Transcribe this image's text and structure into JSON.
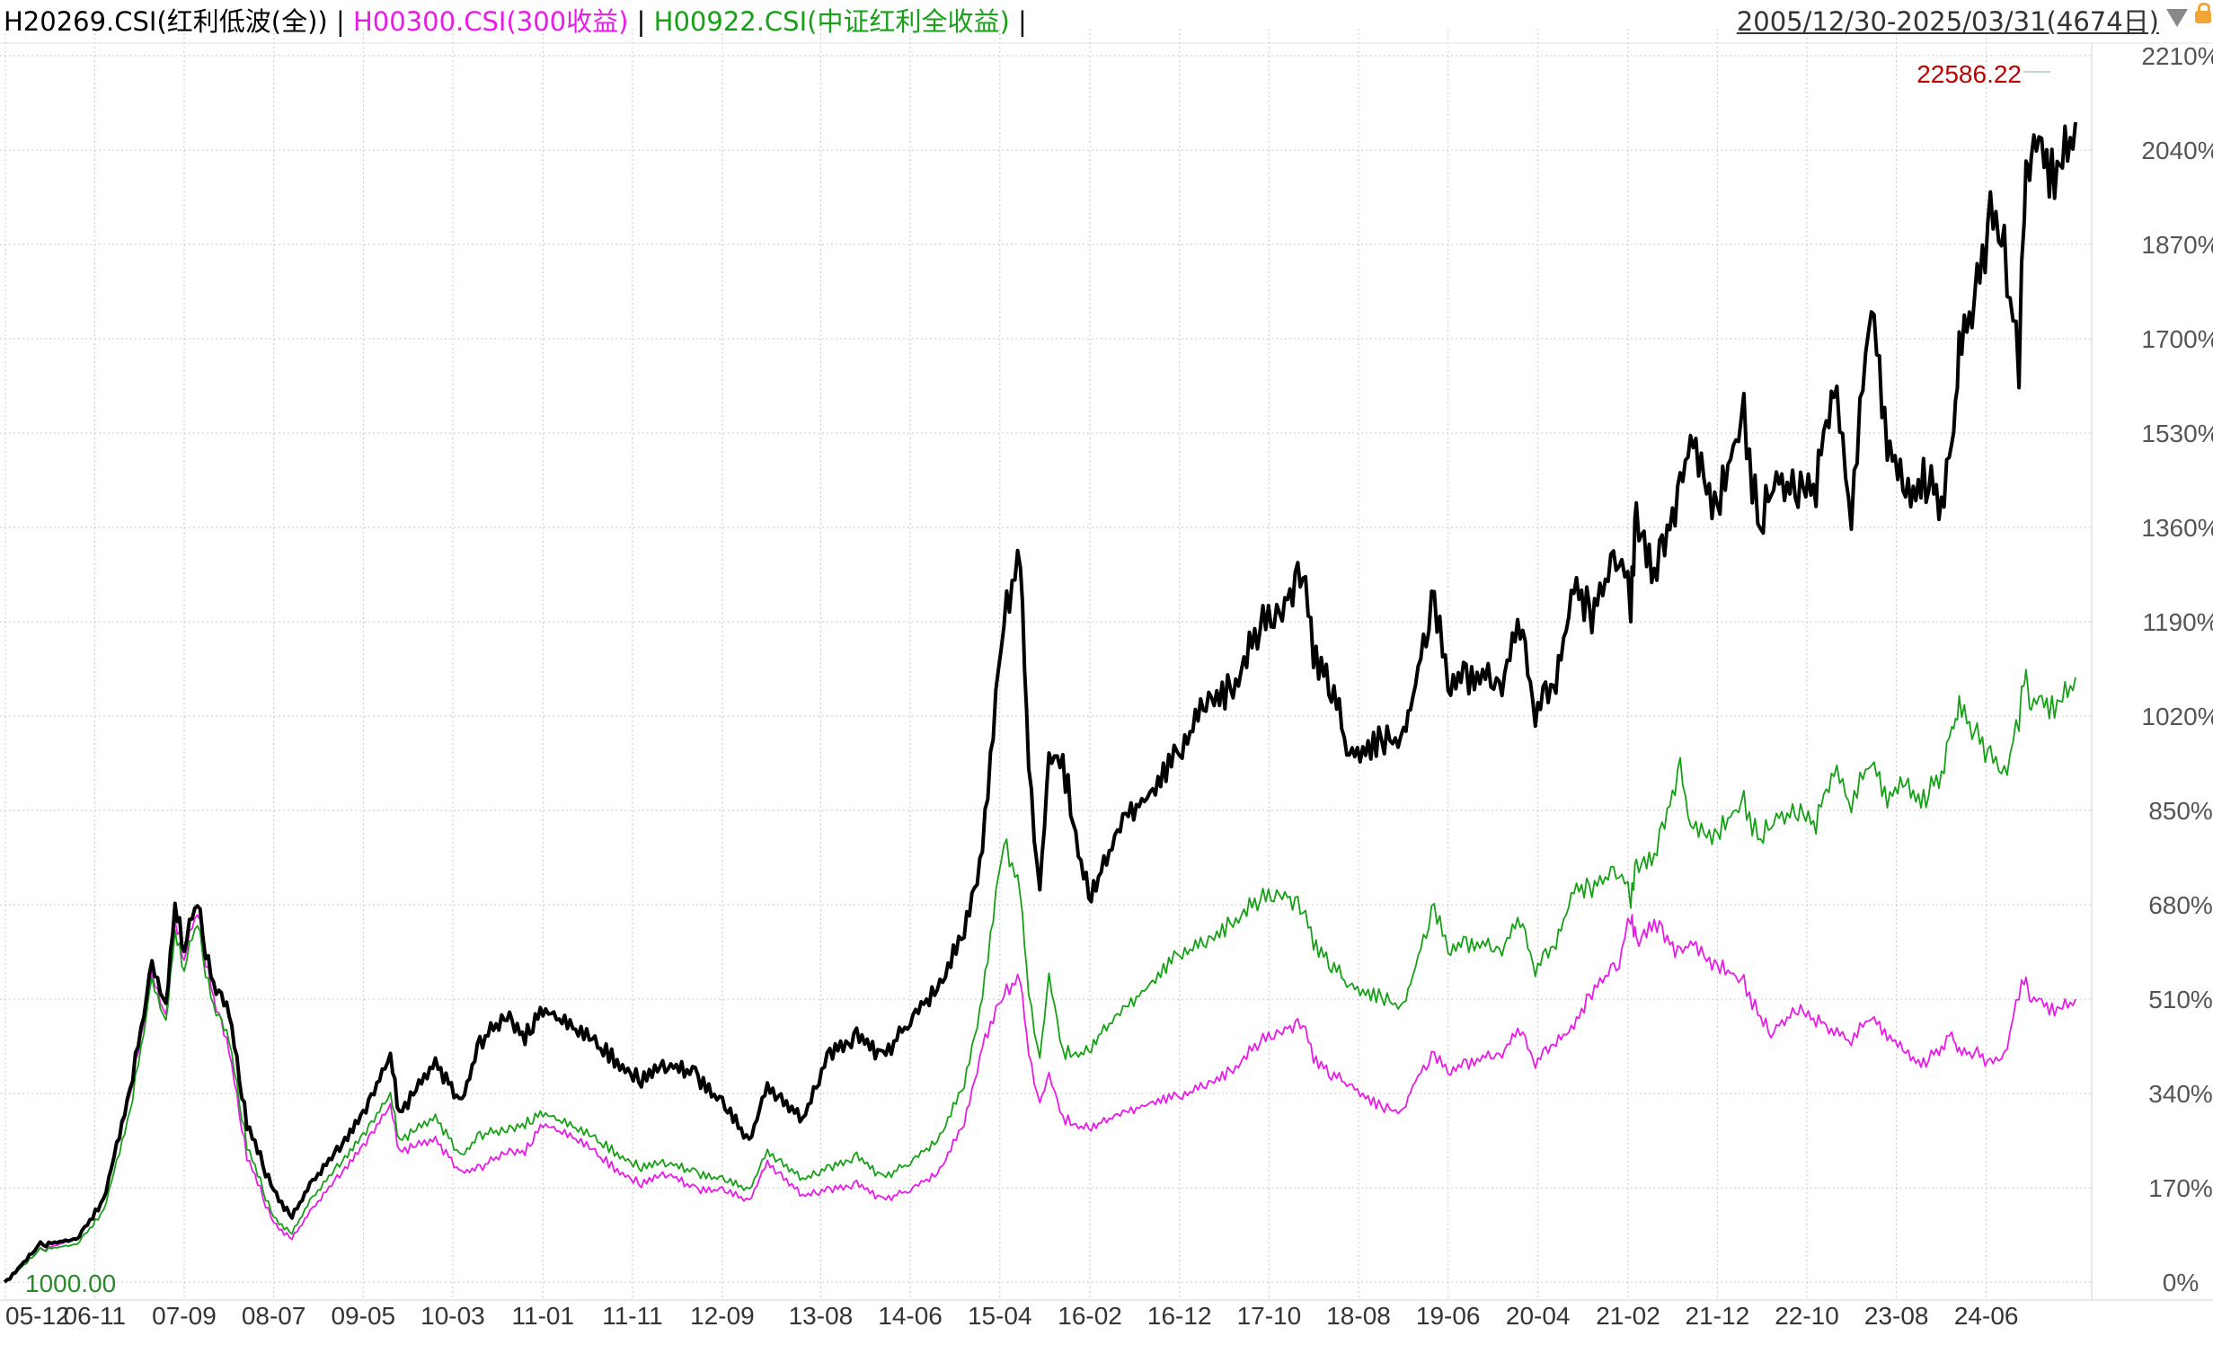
{
  "header": {
    "series": [
      {
        "code": "H20269.CSI",
        "label": "H20269.CSI(红利低波(全))",
        "color": "#000000"
      },
      {
        "code": "H00300.CSI",
        "label": "H00300.CSI(300收益)",
        "color": "#e81be8"
      },
      {
        "code": "H00922.CSI",
        "label": "H00922.CSI(中证红利全收益)",
        "color": "#16a016"
      }
    ],
    "separator": "|",
    "range_text": "2005/12/30-2025/03/31(4674日)"
  },
  "chart_data": {
    "type": "line",
    "y_unit": "%",
    "ylim": [
      0,
      2210
    ],
    "y_ticks": [
      "0%",
      "170%",
      "340%",
      "510%",
      "680%",
      "850%",
      "1020%",
      "1190%",
      "1360%",
      "1530%",
      "1700%",
      "1870%",
      "2040%",
      "2210%"
    ],
    "x_range": [
      "2005-12-30",
      "2025-03-31"
    ],
    "x_ticks": [
      "05-12",
      "06-11",
      "07-09",
      "08-07",
      "09-05",
      "10-03",
      "11-01",
      "11-11",
      "12-09",
      "13-08",
      "14-06",
      "15-04",
      "16-02",
      "16-12",
      "17-10",
      "18-08",
      "19-06",
      "20-04",
      "21-02",
      "21-12",
      "22-10",
      "23-08",
      "24-06"
    ],
    "grid": true,
    "annotations": {
      "start_value": "1000.00",
      "max_value": "22586.22"
    },
    "series": [
      {
        "name": "H20269.CSI",
        "color": "#000000",
        "x": [
          "2005-12-30",
          "2006-05-01",
          "2006-09-01",
          "2006-12-01",
          "2007-03-01",
          "2007-05-15",
          "2007-07-01",
          "2007-08-01",
          "2007-09-01",
          "2007-10-16",
          "2007-12-01",
          "2008-02-01",
          "2008-04-01",
          "2008-07-01",
          "2008-09-01",
          "2008-11-01",
          "2009-02-01",
          "2009-05-01",
          "2009-08-01",
          "2009-09-01",
          "2010-01-01",
          "2010-04-01",
          "2010-06-01",
          "2010-09-01",
          "2010-11-01",
          "2011-01-01",
          "2011-05-01",
          "2011-09-01",
          "2011-12-01",
          "2012-03-01",
          "2012-06-01",
          "2012-09-01",
          "2012-12-01",
          "2013-02-01",
          "2013-06-01",
          "2013-09-01",
          "2013-12-01",
          "2014-03-01",
          "2014-06-01",
          "2014-09-01",
          "2014-12-01",
          "2015-02-01",
          "2015-04-15",
          "2015-06-10",
          "2015-07-08",
          "2015-08-15",
          "2015-09-15",
          "2015-11-01",
          "2016-01-28",
          "2016-03-01",
          "2016-06-01",
          "2016-09-01",
          "2016-12-01",
          "2017-03-01",
          "2017-06-01",
          "2017-09-01",
          "2017-11-15",
          "2018-01-24",
          "2018-03-01",
          "2018-05-01",
          "2018-07-01",
          "2018-10-18",
          "2019-01-01",
          "2019-02-01",
          "2019-04-15",
          "2019-06-01",
          "2019-08-01",
          "2019-12-01",
          "2020-02-01",
          "2020-03-23",
          "2020-06-01",
          "2020-08-01",
          "2020-10-01",
          "2021-01-01",
          "2021-02-10",
          "2021-03-01",
          "2021-05-01",
          "2021-07-28",
          "2021-09-01",
          "2021-12-01",
          "2022-03-01",
          "2022-04-27",
          "2022-06-01",
          "2022-09-01",
          "2022-11-01",
          "2023-01-01",
          "2023-03-01",
          "2023-05-08",
          "2023-07-01",
          "2023-09-01",
          "2023-11-01",
          "2024-01-01",
          "2024-02-05",
          "2024-03-01",
          "2024-05-01",
          "2024-06-15",
          "2024-08-01",
          "2024-09-20",
          "2024-10-08",
          "2024-11-01",
          "2025-01-01",
          "2025-03-31"
        ],
        "y": [
          0,
          70,
          80,
          150,
          350,
          580,
          500,
          690,
          620,
          700,
          560,
          490,
          290,
          170,
          120,
          180,
          240,
          310,
          410,
          310,
          400,
          330,
          440,
          490,
          450,
          500,
          460,
          410,
          370,
          400,
          380,
          330,
          260,
          360,
          300,
          420,
          450,
          410,
          480,
          540,
          640,
          790,
          1220,
          1340,
          950,
          700,
          960,
          950,
          700,
          740,
          850,
          900,
          970,
          1060,
          1090,
          1200,
          1230,
          1320,
          1150,
          1090,
          960,
          990,
          990,
          1070,
          1260,
          1080,
          1110,
          1100,
          1200,
          1040,
          1100,
          1280,
          1220,
          1350,
          1240,
          1400,
          1300,
          1450,
          1540,
          1420,
          1590,
          1360,
          1480,
          1450,
          1460,
          1650,
          1400,
          1810,
          1530,
          1440,
          1470,
          1430,
          1510,
          1700,
          1820,
          1950,
          1880,
          1680,
          2000,
          2090,
          2030,
          2090
        ]
      },
      {
        "name": "H00922.CSI",
        "color": "#16a016",
        "x": [
          "2005-12-30",
          "2006-05-01",
          "2006-09-01",
          "2006-12-01",
          "2007-03-01",
          "2007-05-15",
          "2007-07-01",
          "2007-08-01",
          "2007-09-01",
          "2007-10-16",
          "2007-12-01",
          "2008-02-01",
          "2008-04-01",
          "2008-07-01",
          "2008-09-01",
          "2008-11-01",
          "2009-02-01",
          "2009-05-01",
          "2009-08-01",
          "2009-09-01",
          "2010-01-01",
          "2010-04-01",
          "2010-06-01",
          "2010-09-01",
          "2010-11-01",
          "2011-01-01",
          "2011-05-01",
          "2011-09-01",
          "2011-12-01",
          "2012-03-01",
          "2012-06-01",
          "2012-09-01",
          "2012-12-01",
          "2013-02-01",
          "2013-06-01",
          "2013-09-01",
          "2013-12-01",
          "2014-03-01",
          "2014-06-01",
          "2014-09-01",
          "2014-12-01",
          "2015-02-01",
          "2015-04-15",
          "2015-06-10",
          "2015-07-08",
          "2015-08-15",
          "2015-09-15",
          "2015-11-01",
          "2016-01-28",
          "2016-03-01",
          "2016-06-01",
          "2016-09-01",
          "2016-12-01",
          "2017-03-01",
          "2017-06-01",
          "2017-09-01",
          "2017-11-15",
          "2018-01-24",
          "2018-03-01",
          "2018-05-01",
          "2018-07-01",
          "2018-10-18",
          "2019-01-01",
          "2019-02-01",
          "2019-04-15",
          "2019-06-01",
          "2019-08-01",
          "2019-12-01",
          "2020-02-01",
          "2020-03-23",
          "2020-06-01",
          "2020-08-01",
          "2020-10-01",
          "2021-01-01",
          "2021-02-10",
          "2021-03-01",
          "2021-05-01",
          "2021-07-28",
          "2021-09-01",
          "2021-12-01",
          "2022-03-01",
          "2022-04-27",
          "2022-06-01",
          "2022-09-01",
          "2022-11-01",
          "2023-01-01",
          "2023-03-01",
          "2023-05-08",
          "2023-07-01",
          "2023-09-01",
          "2023-11-01",
          "2024-01-01",
          "2024-02-05",
          "2024-03-01",
          "2024-05-01",
          "2024-06-15",
          "2024-08-01",
          "2024-09-20",
          "2024-10-08",
          "2024-11-01",
          "2025-01-01",
          "2025-03-31"
        ],
        "y": [
          0,
          60,
          70,
          130,
          310,
          550,
          470,
          640,
          580,
          660,
          520,
          440,
          250,
          120,
          90,
          150,
          210,
          270,
          340,
          260,
          300,
          230,
          270,
          280,
          290,
          310,
          280,
          240,
          210,
          220,
          200,
          190,
          170,
          240,
          190,
          210,
          230,
          190,
          220,
          260,
          360,
          520,
          810,
          720,
          530,
          400,
          560,
          420,
          420,
          450,
          500,
          550,
          600,
          620,
          660,
          700,
          710,
          690,
          620,
          580,
          540,
          520,
          500,
          560,
          690,
          600,
          620,
          610,
          660,
          570,
          620,
          720,
          720,
          760,
          700,
          760,
          780,
          940,
          830,
          820,
          880,
          800,
          850,
          860,
          840,
          940,
          870,
          960,
          880,
          910,
          880,
          930,
          1000,
          1050,
          1000,
          960,
          920,
          1030,
          1120,
          1060,
          1050,
          1090
        ]
      },
      {
        "name": "H00300.CSI",
        "color": "#e81be8",
        "x": [
          "2005-12-30",
          "2006-05-01",
          "2006-09-01",
          "2006-12-01",
          "2007-03-01",
          "2007-05-15",
          "2007-07-01",
          "2007-08-01",
          "2007-09-01",
          "2007-10-16",
          "2007-12-01",
          "2008-02-01",
          "2008-04-01",
          "2008-07-01",
          "2008-09-01",
          "2008-11-01",
          "2009-02-01",
          "2009-05-01",
          "2009-08-01",
          "2009-09-01",
          "2010-01-01",
          "2010-04-01",
          "2010-06-01",
          "2010-09-01",
          "2010-11-01",
          "2011-01-01",
          "2011-05-01",
          "2011-09-01",
          "2011-12-01",
          "2012-03-01",
          "2012-06-01",
          "2012-09-01",
          "2012-12-01",
          "2013-02-01",
          "2013-06-01",
          "2013-09-01",
          "2013-12-01",
          "2014-03-01",
          "2014-06-01",
          "2014-09-01",
          "2014-12-01",
          "2015-02-01",
          "2015-04-15",
          "2015-06-10",
          "2015-07-08",
          "2015-08-15",
          "2015-09-15",
          "2015-11-01",
          "2016-01-28",
          "2016-03-01",
          "2016-06-01",
          "2016-09-01",
          "2016-12-01",
          "2017-03-01",
          "2017-06-01",
          "2017-09-01",
          "2017-11-15",
          "2018-01-24",
          "2018-03-01",
          "2018-05-01",
          "2018-07-01",
          "2018-10-18",
          "2019-01-01",
          "2019-02-01",
          "2019-04-15",
          "2019-06-01",
          "2019-08-01",
          "2019-12-01",
          "2020-02-01",
          "2020-03-23",
          "2020-06-01",
          "2020-08-01",
          "2020-10-01",
          "2021-01-01",
          "2021-02-10",
          "2021-03-01",
          "2021-05-01",
          "2021-07-28",
          "2021-09-01",
          "2021-12-01",
          "2022-03-01",
          "2022-04-27",
          "2022-06-01",
          "2022-09-01",
          "2022-11-01",
          "2023-01-01",
          "2023-03-01",
          "2023-05-08",
          "2023-07-01",
          "2023-09-01",
          "2023-11-01",
          "2024-01-01",
          "2024-02-05",
          "2024-03-01",
          "2024-05-01",
          "2024-06-15",
          "2024-08-01",
          "2024-09-20",
          "2024-10-08",
          "2024-11-01",
          "2025-01-01",
          "2025-03-31"
        ],
        "y": [
          0,
          60,
          80,
          150,
          340,
          560,
          480,
          660,
          600,
          680,
          540,
          420,
          230,
          110,
          80,
          130,
          190,
          250,
          320,
          240,
          260,
          200,
          210,
          240,
          240,
          290,
          260,
          210,
          180,
          200,
          170,
          170,
          150,
          220,
          160,
          170,
          180,
          150,
          170,
          200,
          290,
          430,
          530,
          560,
          420,
          320,
          380,
          300,
          280,
          290,
          310,
          330,
          340,
          360,
          390,
          440,
          460,
          480,
          410,
          380,
          360,
          320,
          310,
          360,
          420,
          380,
          400,
          420,
          460,
          400,
          440,
          470,
          530,
          590,
          670,
          620,
          660,
          600,
          620,
          580,
          550,
          480,
          460,
          500,
          480,
          460,
          440,
          490,
          450,
          420,
          400,
          430,
          450,
          420,
          420,
          400,
          410,
          530,
          560,
          520,
          500,
          510
        ]
      }
    ]
  }
}
